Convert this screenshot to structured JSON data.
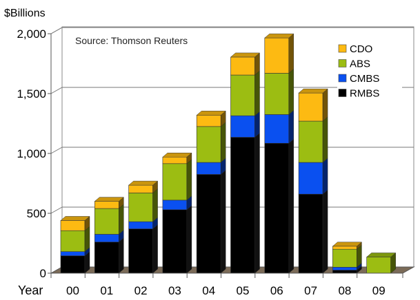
{
  "chart_data": {
    "type": "bar",
    "stacked": true,
    "three_d": true,
    "ylabel": "$Billions",
    "xlabel": "Year",
    "annotation": "Source: Thomson Reuters",
    "categories": [
      "00",
      "01",
      "02",
      "03",
      "04",
      "05",
      "06",
      "07",
      "08",
      "09"
    ],
    "ylim": [
      0,
      2000
    ],
    "yticks": [
      0,
      500,
      1000,
      1500,
      2000
    ],
    "ytick_labels": [
      "0",
      "500",
      "1,000",
      "1,500",
      "2,000"
    ],
    "grid": true,
    "legend_position": "top-right",
    "series": [
      {
        "name": "RMBS",
        "color": "#000000",
        "values": [
          145,
          260,
          370,
          530,
          825,
          1135,
          1085,
          660,
          25,
          0
        ]
      },
      {
        "name": "CMBS",
        "color": "#0A50F0",
        "values": [
          35,
          65,
          60,
          80,
          100,
          180,
          240,
          265,
          25,
          0
        ]
      },
      {
        "name": "ABS",
        "color": "#9CBD12",
        "values": [
          175,
          215,
          240,
          305,
          300,
          340,
          345,
          345,
          150,
          135
        ]
      },
      {
        "name": "CDO",
        "color": "#FDBA12",
        "values": [
          85,
          60,
          65,
          55,
          95,
          150,
          295,
          235,
          25,
          0
        ]
      }
    ],
    "legend_order": [
      "CDO",
      "ABS",
      "CMBS",
      "RMBS"
    ]
  }
}
